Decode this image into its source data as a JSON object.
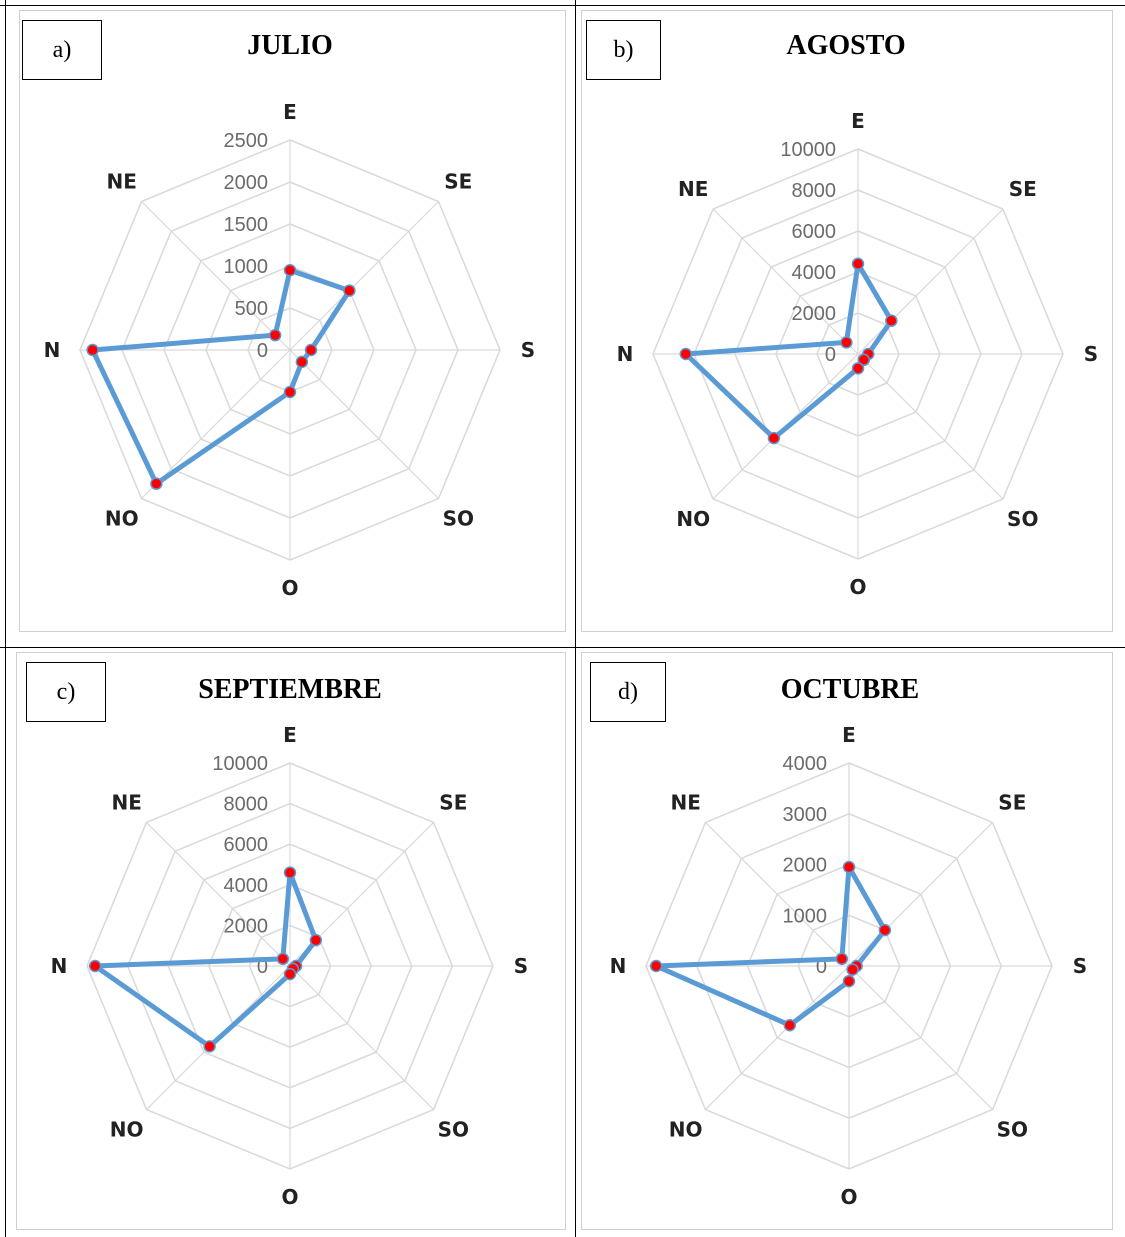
{
  "chart_data": [
    {
      "type": "radar",
      "panel_label": "a)",
      "title": "JULIO",
      "directions": [
        "E",
        "SE",
        "S",
        "SO",
        "O",
        "NO",
        "N",
        "NE"
      ],
      "ticks": [
        "0",
        "500",
        "1000",
        "1500",
        "2000",
        "2500"
      ],
      "rmax": 2500,
      "values": [
        950,
        1000,
        250,
        200,
        500,
        2250,
        2350,
        250
      ],
      "line_color": "#5b9bd5",
      "marker_color": "#ff0000"
    },
    {
      "type": "radar",
      "panel_label": "b)",
      "title": "AGOSTO",
      "directions": [
        "E",
        "SE",
        "S",
        "SO",
        "O",
        "NO",
        "N",
        "NE"
      ],
      "ticks": [
        "0",
        "2000",
        "4000",
        "6000",
        "8000",
        "10000"
      ],
      "rmax": 10000,
      "values": [
        4400,
        2300,
        500,
        400,
        700,
        5800,
        8400,
        800
      ],
      "line_color": "#5b9bd5",
      "marker_color": "#ff0000"
    },
    {
      "type": "radar",
      "panel_label": "c)",
      "title": "SEPTIEMBRE",
      "directions": [
        "E",
        "SE",
        "S",
        "SO",
        "O",
        "NO",
        "N",
        "NE"
      ],
      "ticks": [
        "0",
        "2000",
        "4000",
        "6000",
        "8000",
        "10000"
      ],
      "rmax": 10000,
      "values": [
        4600,
        1800,
        300,
        200,
        400,
        5600,
        9600,
        500
      ],
      "line_color": "#5b9bd5",
      "marker_color": "#ff0000"
    },
    {
      "type": "radar",
      "panel_label": "d)",
      "title": "OCTUBRE",
      "directions": [
        "E",
        "SE",
        "S",
        "SO",
        "O",
        "NO",
        "N",
        "NE"
      ],
      "ticks": [
        "0",
        "1000",
        "2000",
        "3000",
        "4000"
      ],
      "rmax": 4000,
      "values": [
        1950,
        1000,
        150,
        100,
        300,
        1650,
        3800,
        200
      ],
      "line_color": "#5b9bd5",
      "marker_color": "#ff0000"
    }
  ]
}
